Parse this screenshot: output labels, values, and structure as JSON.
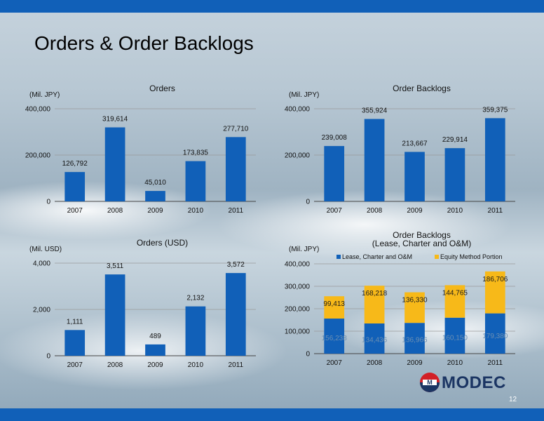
{
  "slide": {
    "title": "Orders & Order Backlogs",
    "page_number": "12",
    "logo_text": "MODEC",
    "bar_color": "#1160b8"
  },
  "chart_data": [
    {
      "id": "orders-jpy",
      "type": "bar",
      "title": "Orders",
      "unit_label": "(Mil. JPY)",
      "categories": [
        "2007",
        "2008",
        "2009",
        "2010",
        "2011"
      ],
      "values": [
        126792,
        319614,
        45010,
        173835,
        277710
      ],
      "value_labels": [
        "126,792",
        "319,614",
        "45,010",
        "173,835",
        "277,710"
      ],
      "ylim": [
        0,
        400000
      ],
      "yticks": [
        0,
        200000,
        400000
      ],
      "ytick_labels": [
        "0",
        "200,000",
        "400,000"
      ],
      "color": "#1160b8",
      "grid": true
    },
    {
      "id": "backlogs-jpy",
      "type": "bar",
      "title": "Order Backlogs",
      "unit_label": "(Mil. JPY)",
      "categories": [
        "2007",
        "2008",
        "2009",
        "2010",
        "2011"
      ],
      "values": [
        239008,
        355924,
        213667,
        229914,
        359375
      ],
      "value_labels": [
        "239,008",
        "355,924",
        "213,667",
        "229,914",
        "359,375"
      ],
      "ylim": [
        0,
        400000
      ],
      "yticks": [
        0,
        200000,
        400000
      ],
      "ytick_labels": [
        "0",
        "200,000",
        "400,000"
      ],
      "color": "#1160b8",
      "grid": true
    },
    {
      "id": "orders-usd",
      "type": "bar",
      "title": "Orders (USD)",
      "unit_label": "(Mil. USD)",
      "categories": [
        "2007",
        "2008",
        "2009",
        "2010",
        "2011"
      ],
      "values": [
        1111,
        3511,
        489,
        2132,
        3572
      ],
      "value_labels": [
        "1,111",
        "3,511",
        "489",
        "2,132",
        "3,572"
      ],
      "ylim": [
        0,
        4000
      ],
      "yticks": [
        0,
        2000,
        4000
      ],
      "ytick_labels": [
        "0",
        "2,000",
        "4,000"
      ],
      "color": "#1160b8",
      "grid": true
    },
    {
      "id": "backlogs-stacked",
      "type": "bar",
      "stacked": true,
      "title_lines": [
        "Order Backlogs",
        "(Lease, Charter and O&M)"
      ],
      "unit_label": "(Mil. JPY)",
      "categories": [
        "2007",
        "2008",
        "2009",
        "2010",
        "2011"
      ],
      "legend_position": "top",
      "series": [
        {
          "name": "Lease, Charter and O&M",
          "color": "#1160b8",
          "values": [
            156238,
            134436,
            136966,
            160150,
            179380
          ],
          "value_labels": [
            "156,238",
            "134,436",
            "136,966",
            "160,150",
            "179,380"
          ]
        },
        {
          "name": "Equity Method Portion",
          "color": "#f7b919",
          "values": [
            99413,
            168218,
            136330,
            144765,
            186706
          ],
          "value_labels": [
            "99,413",
            "168,218",
            "136,330",
            "144,765",
            "186,706"
          ]
        }
      ],
      "ylim": [
        0,
        400000
      ],
      "yticks": [
        0,
        100000,
        200000,
        300000,
        400000
      ],
      "ytick_labels": [
        "0",
        "100,000",
        "200,000",
        "300,000",
        "400,000"
      ],
      "grid": true
    }
  ]
}
